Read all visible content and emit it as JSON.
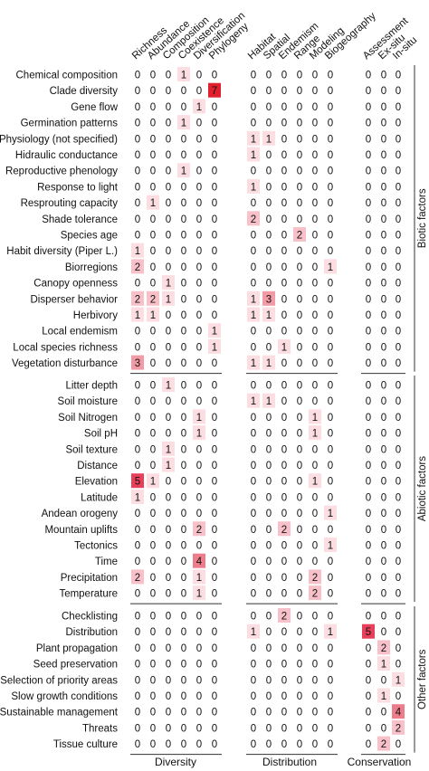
{
  "chart_data": {
    "type": "heatmap",
    "groups": [
      {
        "name": "Diversity",
        "columns": [
          "Richness",
          "Abundance",
          "Composition",
          "Coexistence",
          "Diversification",
          "Phylogeny"
        ]
      },
      {
        "name": "Distribution",
        "columns": [
          "Habitat",
          "Spatial",
          "Endemism",
          "Range",
          "Modeling",
          "Biogeography"
        ]
      },
      {
        "name": "Conservation",
        "columns": [
          "Assessment",
          "Ex-situ",
          "In-situ"
        ]
      }
    ],
    "sections": [
      {
        "name": "Biotic factors",
        "rows": [
          {
            "label": "Chemical composition",
            "values": [
              0,
              0,
              0,
              1,
              0,
              0,
              0,
              0,
              0,
              0,
              0,
              0,
              0,
              0,
              0
            ]
          },
          {
            "label": "Clade diversity",
            "values": [
              0,
              0,
              0,
              0,
              0,
              7,
              0,
              0,
              0,
              0,
              0,
              0,
              0,
              0,
              0
            ]
          },
          {
            "label": "Gene flow",
            "values": [
              0,
              0,
              0,
              0,
              1,
              0,
              0,
              0,
              0,
              0,
              0,
              0,
              0,
              0,
              0
            ]
          },
          {
            "label": "Germination patterns",
            "values": [
              0,
              0,
              0,
              1,
              0,
              0,
              0,
              0,
              0,
              0,
              0,
              0,
              0,
              0,
              0
            ]
          },
          {
            "label": "Physiology (not specified)",
            "values": [
              0,
              0,
              0,
              0,
              0,
              0,
              1,
              1,
              0,
              0,
              0,
              0,
              0,
              0,
              0
            ]
          },
          {
            "label": "Hidraulic conductance",
            "values": [
              0,
              0,
              0,
              0,
              0,
              0,
              1,
              0,
              0,
              0,
              0,
              0,
              0,
              0,
              0
            ]
          },
          {
            "label": "Reproductive phenology",
            "values": [
              0,
              0,
              0,
              1,
              0,
              0,
              0,
              0,
              0,
              0,
              0,
              0,
              0,
              0,
              0
            ]
          },
          {
            "label": "Response to light",
            "values": [
              0,
              0,
              0,
              0,
              0,
              0,
              1,
              0,
              0,
              0,
              0,
              0,
              0,
              0,
              0
            ]
          },
          {
            "label": "Resprouting capacity",
            "values": [
              0,
              1,
              0,
              0,
              0,
              0,
              0,
              0,
              0,
              0,
              0,
              0,
              0,
              0,
              0
            ]
          },
          {
            "label": "Shade tolerance",
            "values": [
              0,
              0,
              0,
              0,
              0,
              0,
              2,
              0,
              0,
              0,
              0,
              0,
              0,
              0,
              0
            ]
          },
          {
            "label": "Species age",
            "values": [
              0,
              0,
              0,
              0,
              0,
              0,
              0,
              0,
              0,
              2,
              0,
              0,
              0,
              0,
              0
            ]
          },
          {
            "label": "Habit diversity (Piper L.)",
            "values": [
              1,
              0,
              0,
              0,
              0,
              0,
              0,
              0,
              0,
              0,
              0,
              0,
              0,
              0,
              0
            ]
          },
          {
            "label": "Biorregions",
            "values": [
              2,
              0,
              0,
              0,
              0,
              0,
              0,
              0,
              0,
              0,
              0,
              1,
              0,
              0,
              0
            ]
          },
          {
            "label": "Canopy openness",
            "values": [
              0,
              0,
              1,
              0,
              0,
              0,
              0,
              0,
              0,
              0,
              0,
              0,
              0,
              0,
              0
            ]
          },
          {
            "label": "Disperser behavior",
            "values": [
              2,
              2,
              1,
              0,
              0,
              0,
              1,
              3,
              0,
              0,
              0,
              0,
              0,
              0,
              0
            ]
          },
          {
            "label": "Herbivory",
            "values": [
              1,
              1,
              0,
              0,
              0,
              0,
              1,
              1,
              0,
              0,
              0,
              0,
              0,
              0,
              0
            ]
          },
          {
            "label": "Local endemism",
            "values": [
              0,
              0,
              0,
              0,
              0,
              1,
              0,
              0,
              0,
              0,
              0,
              0,
              0,
              0,
              0
            ]
          },
          {
            "label": "Local species richness",
            "values": [
              0,
              0,
              0,
              0,
              0,
              1,
              0,
              0,
              1,
              0,
              0,
              0,
              0,
              0,
              0
            ]
          },
          {
            "label": "Vegetation disturbance",
            "values": [
              3,
              0,
              0,
              0,
              0,
              0,
              1,
              1,
              0,
              0,
              0,
              0,
              0,
              0,
              0
            ]
          }
        ]
      },
      {
        "name": "Abiotic factors",
        "rows": [
          {
            "label": "Litter depth",
            "values": [
              0,
              0,
              1,
              0,
              0,
              0,
              0,
              0,
              0,
              0,
              0,
              0,
              0,
              0,
              0
            ]
          },
          {
            "label": "Soil moisture",
            "values": [
              0,
              0,
              0,
              0,
              0,
              0,
              1,
              1,
              0,
              0,
              0,
              0,
              0,
              0,
              0
            ]
          },
          {
            "label": "Soil Nitrogen",
            "values": [
              0,
              0,
              0,
              0,
              1,
              0,
              0,
              0,
              0,
              0,
              1,
              0,
              0,
              0,
              0
            ]
          },
          {
            "label": "Soil pH",
            "values": [
              0,
              0,
              0,
              0,
              1,
              0,
              0,
              0,
              0,
              0,
              1,
              0,
              0,
              0,
              0
            ]
          },
          {
            "label": "Soil texture",
            "values": [
              0,
              0,
              1,
              0,
              0,
              0,
              0,
              0,
              0,
              0,
              0,
              0,
              0,
              0,
              0
            ]
          },
          {
            "label": "Distance",
            "values": [
              0,
              0,
              1,
              0,
              0,
              0,
              0,
              0,
              0,
              0,
              0,
              0,
              0,
              0,
              0
            ]
          },
          {
            "label": "Elevation",
            "values": [
              5,
              1,
              0,
              0,
              0,
              0,
              0,
              0,
              0,
              0,
              1,
              0,
              0,
              0,
              0
            ]
          },
          {
            "label": "Latitude",
            "values": [
              1,
              0,
              0,
              0,
              0,
              0,
              0,
              0,
              0,
              0,
              0,
              0,
              0,
              0,
              0
            ]
          },
          {
            "label": "Andean orogeny",
            "values": [
              0,
              0,
              0,
              0,
              0,
              0,
              0,
              0,
              0,
              0,
              0,
              1,
              0,
              0,
              0
            ]
          },
          {
            "label": "Mountain uplifts",
            "values": [
              0,
              0,
              0,
              0,
              2,
              0,
              0,
              0,
              2,
              0,
              0,
              0,
              0,
              0,
              0
            ]
          },
          {
            "label": "Tectonics",
            "values": [
              0,
              0,
              0,
              0,
              0,
              0,
              0,
              0,
              0,
              0,
              0,
              1,
              0,
              0,
              0
            ]
          },
          {
            "label": "Time",
            "values": [
              0,
              0,
              0,
              0,
              4,
              0,
              0,
              0,
              0,
              0,
              0,
              0,
              0,
              0,
              0
            ]
          },
          {
            "label": "Precipitation",
            "values": [
              2,
              0,
              0,
              0,
              1,
              0,
              0,
              0,
              0,
              0,
              2,
              0,
              0,
              0,
              0
            ]
          },
          {
            "label": "Temperature",
            "values": [
              0,
              0,
              0,
              0,
              1,
              0,
              0,
              0,
              0,
              0,
              2,
              0,
              0,
              0,
              0
            ]
          }
        ]
      },
      {
        "name": "Other factors",
        "rows": [
          {
            "label": "Checklisting",
            "values": [
              0,
              0,
              0,
              0,
              0,
              0,
              0,
              0,
              2,
              0,
              0,
              0,
              0,
              0,
              0
            ]
          },
          {
            "label": "Distribution",
            "values": [
              0,
              0,
              0,
              0,
              0,
              0,
              1,
              0,
              0,
              0,
              0,
              1,
              5,
              0,
              0
            ]
          },
          {
            "label": "Plant propagation",
            "values": [
              0,
              0,
              0,
              0,
              0,
              0,
              0,
              0,
              0,
              0,
              0,
              0,
              0,
              2,
              0
            ]
          },
          {
            "label": "Seed preservation",
            "values": [
              0,
              0,
              0,
              0,
              0,
              0,
              0,
              0,
              0,
              0,
              0,
              0,
              0,
              1,
              0
            ]
          },
          {
            "label": "Selection of priority areas",
            "values": [
              0,
              0,
              0,
              0,
              0,
              0,
              0,
              0,
              0,
              0,
              0,
              0,
              0,
              0,
              1
            ]
          },
          {
            "label": "Slow growth conditions",
            "values": [
              0,
              0,
              0,
              0,
              0,
              0,
              0,
              0,
              0,
              0,
              0,
              0,
              0,
              1,
              0
            ]
          },
          {
            "label": "Sustainable management",
            "values": [
              0,
              0,
              0,
              0,
              0,
              0,
              0,
              0,
              0,
              0,
              0,
              0,
              0,
              0,
              4
            ]
          },
          {
            "label": "Threats",
            "values": [
              0,
              0,
              0,
              0,
              0,
              0,
              0,
              0,
              0,
              0,
              0,
              0,
              0,
              0,
              2
            ]
          },
          {
            "label": "Tissue culture",
            "values": [
              0,
              0,
              0,
              0,
              0,
              0,
              0,
              0,
              0,
              0,
              0,
              0,
              0,
              2,
              0
            ]
          }
        ]
      }
    ],
    "value_range": [
      0,
      7
    ],
    "colors": {
      "1": "#fcdde2",
      "2": "#f8c0c8",
      "3": "#f29aa6",
      "4": "#ee7d8b",
      "5": "#e6405a",
      "7": "#e0202c"
    },
    "text_color": "#111111",
    "legend": "none",
    "grid": false
  }
}
